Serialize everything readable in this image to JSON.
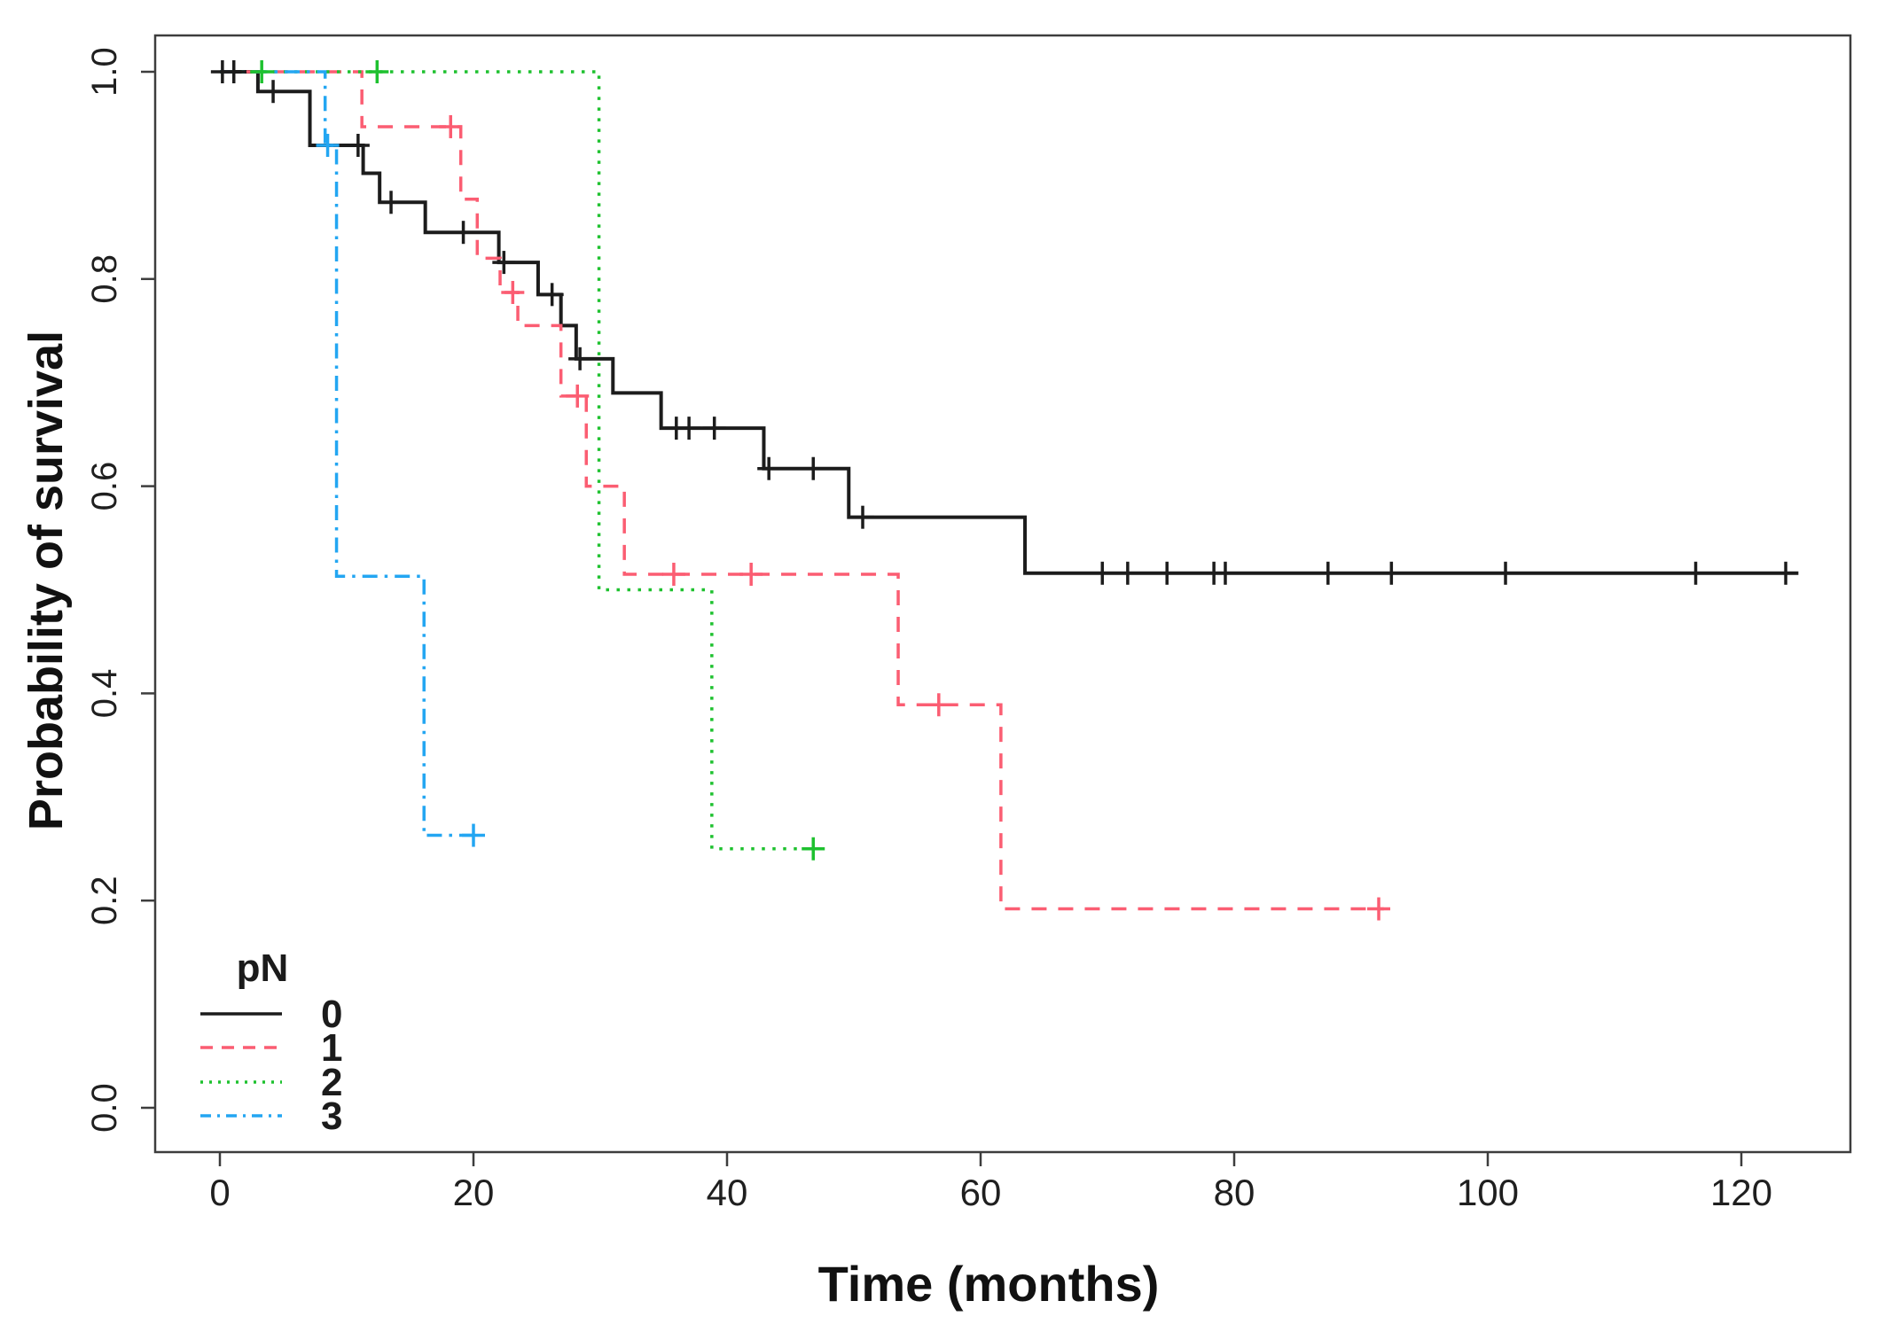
{
  "figure": {
    "kind": "kaplan-meier-survival-plot",
    "background": "#ffffff",
    "frame_color": "#3d3d3d",
    "text_color": "#1f1f1f"
  },
  "axes": {
    "x": {
      "label": "Time (months)",
      "ticks": [
        "0",
        "20",
        "40",
        "60",
        "80",
        "100",
        "120"
      ],
      "tick_values": [
        0,
        20,
        40,
        60,
        80,
        100,
        120
      ]
    },
    "y": {
      "label": "Probability of survival",
      "ticks": [
        "0.0",
        "0.2",
        "0.4",
        "0.6",
        "0.8",
        "1.0"
      ],
      "tick_values": [
        0.0,
        0.2,
        0.4,
        0.6,
        0.8,
        1.0
      ]
    }
  },
  "legend": {
    "title": "pN",
    "entries": [
      "0",
      "1",
      "2",
      "3"
    ]
  },
  "chart_data": {
    "type": "line",
    "subtype": "step-survival",
    "title": "",
    "xlabel": "Time (months)",
    "ylabel": "Probability of survival",
    "xlim": [
      0,
      125
    ],
    "ylim": [
      0.0,
      1.0
    ],
    "grid": false,
    "legend_position": "bottom-left-inside",
    "series": [
      {
        "id": "pN0",
        "label": "0",
        "color": "#1c1c1c",
        "linestyle": "solid",
        "steps": [
          [
            0,
            1.0
          ],
          [
            3.0,
            0.981
          ],
          [
            7.1,
            0.929
          ],
          [
            11.3,
            0.902
          ],
          [
            12.6,
            0.874
          ],
          [
            16.2,
            0.845
          ],
          [
            22.0,
            0.816
          ],
          [
            25.1,
            0.785
          ],
          [
            26.9,
            0.755
          ],
          [
            28.1,
            0.723
          ],
          [
            31.0,
            0.69
          ],
          [
            34.8,
            0.656
          ],
          [
            42.9,
            0.617
          ],
          [
            49.6,
            0.57
          ],
          [
            63.5,
            0.516
          ]
        ],
        "end_time": 124.5,
        "censors": [
          [
            0.2,
            1.0
          ],
          [
            1.1,
            1.0
          ],
          [
            4.2,
            0.981
          ],
          [
            10.9,
            0.929
          ],
          [
            13.5,
            0.874
          ],
          [
            19.2,
            0.845
          ],
          [
            22.4,
            0.816
          ],
          [
            26.2,
            0.785
          ],
          [
            28.4,
            0.723
          ],
          [
            36.0,
            0.656
          ],
          [
            37.0,
            0.656
          ],
          [
            39.0,
            0.656
          ],
          [
            43.3,
            0.617
          ],
          [
            46.8,
            0.617
          ],
          [
            50.7,
            0.57
          ],
          [
            69.6,
            0.516
          ],
          [
            71.6,
            0.516
          ],
          [
            74.7,
            0.516
          ],
          [
            78.4,
            0.516
          ],
          [
            79.3,
            0.516
          ],
          [
            87.4,
            0.516
          ],
          [
            92.4,
            0.516
          ],
          [
            101.4,
            0.516
          ],
          [
            116.4,
            0.516
          ],
          [
            123.5,
            0.516
          ]
        ]
      },
      {
        "id": "pN1",
        "label": "1",
        "color": "#fb5d72",
        "linestyle": "dashed",
        "steps": [
          [
            0,
            1.0
          ],
          [
            11.2,
            0.947
          ],
          [
            19.0,
            0.877
          ],
          [
            20.3,
            0.82
          ],
          [
            22.1,
            0.787
          ],
          [
            23.5,
            0.755
          ],
          [
            26.9,
            0.687
          ],
          [
            28.9,
            0.6
          ],
          [
            31.9,
            0.515
          ],
          [
            53.5,
            0.389
          ],
          [
            61.6,
            0.192
          ]
        ],
        "end_time": 91.8,
        "censors": [
          [
            18.2,
            0.947
          ],
          [
            23.1,
            0.787
          ],
          [
            28.2,
            0.687
          ],
          [
            35.8,
            0.515
          ],
          [
            41.9,
            0.515
          ],
          [
            56.7,
            0.389
          ],
          [
            91.4,
            0.192
          ]
        ]
      },
      {
        "id": "pN2",
        "label": "2",
        "color": "#1ec12f",
        "linestyle": "dotted",
        "steps": [
          [
            0,
            1.0
          ],
          [
            29.9,
            0.5
          ],
          [
            38.8,
            0.25
          ]
        ],
        "end_time": 47.3,
        "censors": [
          [
            3.3,
            1.0
          ],
          [
            12.4,
            1.0
          ],
          [
            46.8,
            0.25
          ]
        ]
      },
      {
        "id": "pN3",
        "label": "3",
        "color": "#23a6f2",
        "linestyle": "dashdot",
        "steps": [
          [
            0,
            1.0
          ],
          [
            8.3,
            0.929
          ],
          [
            9.2,
            0.513
          ],
          [
            16.1,
            0.263
          ]
        ],
        "end_time": 20.3,
        "censors": [
          [
            8.5,
            0.929
          ],
          [
            20.0,
            0.263
          ]
        ]
      }
    ]
  }
}
